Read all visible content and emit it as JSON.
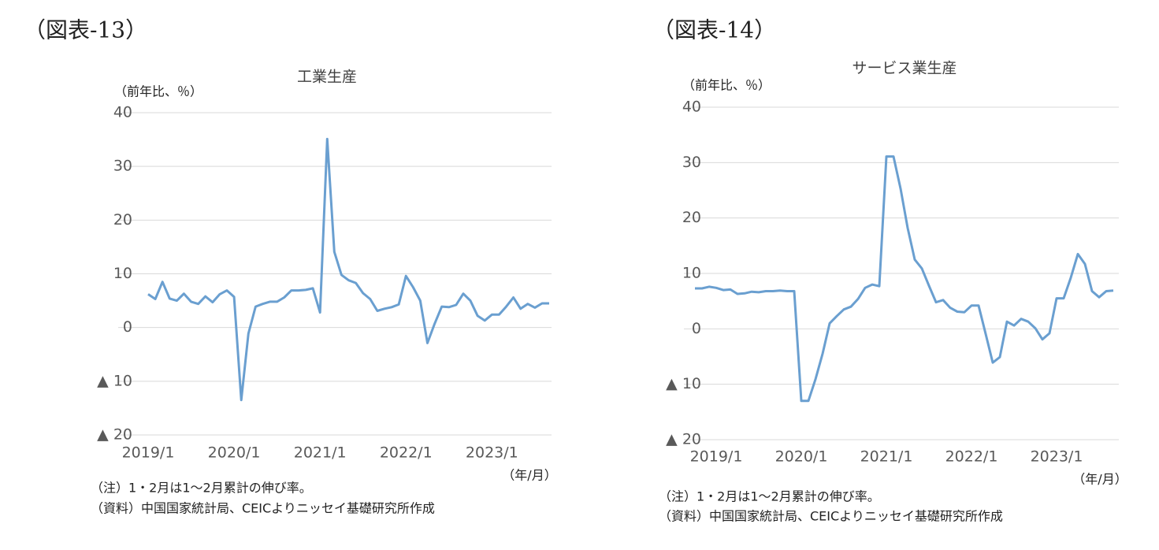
{
  "chart_data": [
    {
      "type": "line",
      "figure_label": "（図表-13）",
      "title": "工業生産",
      "y_unit": "（前年比、％）",
      "x_unit": "（年/月）",
      "notes": [
        "（注）1・2月は1～2月累計の伸び率。",
        "（資料）中国国家統計局、CEICよりニッセイ基礎研究所作成"
      ],
      "categories": [
        "2019/1",
        null,
        null,
        null,
        null,
        null,
        null,
        null,
        null,
        null,
        null,
        null,
        "2020/1",
        null,
        null,
        null,
        null,
        null,
        null,
        null,
        null,
        null,
        null,
        null,
        "2021/1",
        null,
        null,
        null,
        null,
        null,
        null,
        null,
        null,
        null,
        null,
        null,
        "2022/1",
        null,
        null,
        null,
        null,
        null,
        null,
        null,
        null,
        null,
        null,
        null,
        "2023/1",
        null,
        null,
        null,
        null,
        null,
        null,
        null,
        null
      ],
      "series": [
        {
          "name": "工業生産",
          "color": "#6a9fd0",
          "values": [
            6.2,
            5.3,
            8.5,
            5.4,
            5.0,
            6.3,
            4.8,
            4.4,
            5.8,
            4.7,
            6.2,
            6.9,
            5.7,
            -13.5,
            -1.1,
            3.9,
            4.4,
            4.8,
            4.8,
            5.6,
            6.9,
            6.9,
            7.0,
            7.3,
            2.8,
            35.1,
            14.1,
            9.8,
            8.8,
            8.3,
            6.4,
            5.3,
            3.1,
            3.5,
            3.8,
            4.3,
            9.6,
            7.5,
            5.0,
            -2.9,
            0.7,
            3.9,
            3.8,
            4.2,
            6.3,
            5.0,
            2.2,
            1.3,
            2.4,
            2.4,
            3.9,
            5.6,
            3.5,
            4.4,
            3.7,
            4.5,
            4.5
          ]
        }
      ],
      "ylim": [
        -20,
        40
      ],
      "yticks": [
        {
          "value": -20,
          "label": "▲ 20"
        },
        {
          "value": -10,
          "label": "▲ 10"
        },
        0,
        10,
        20,
        30,
        40
      ],
      "grid": true
    },
    {
      "type": "line",
      "figure_label": "（図表-14）",
      "title": "サービス業生産",
      "y_unit": "（前年比、％）",
      "x_unit": "（年/月）",
      "notes": [
        "（注）1・2月は1～2月累計の伸び率。",
        "（資料）中国国家統計局、CEICよりニッセイ基礎研究所作成"
      ],
      "categories": [
        null,
        null,
        null,
        "2019/1",
        null,
        null,
        null,
        null,
        null,
        null,
        null,
        null,
        null,
        null,
        null,
        "2020/1",
        null,
        null,
        null,
        null,
        null,
        null,
        null,
        null,
        null,
        null,
        null,
        "2021/1",
        null,
        null,
        null,
        null,
        null,
        null,
        null,
        null,
        null,
        null,
        null,
        "2022/1",
        null,
        null,
        null,
        null,
        null,
        null,
        null,
        null,
        null,
        null,
        null,
        "2023/1",
        null,
        null,
        null,
        null,
        null,
        null,
        null,
        null
      ],
      "series": [
        {
          "name": "サービス業生産",
          "color": "#6a9fd0",
          "values": [
            7.3,
            7.3,
            7.6,
            7.4,
            7.0,
            7.1,
            6.3,
            6.4,
            6.7,
            6.6,
            6.8,
            6.8,
            6.9,
            6.8,
            6.8,
            -13.0,
            -13.0,
            -9.1,
            -4.5,
            1.0,
            2.3,
            3.5,
            4.0,
            5.4,
            7.4,
            8.0,
            7.7,
            31.1,
            31.1,
            25.3,
            18.2,
            12.5,
            10.9,
            7.8,
            4.8,
            5.2,
            3.8,
            3.1,
            3.0,
            4.2,
            4.2,
            -0.9,
            -6.1,
            -5.1,
            1.3,
            0.6,
            1.8,
            1.3,
            0.1,
            -1.9,
            -0.8,
            5.5,
            5.5,
            9.2,
            13.5,
            11.7,
            6.8,
            5.7,
            6.8,
            6.9
          ]
        }
      ],
      "ylim": [
        -20,
        40
      ],
      "yticks": [
        {
          "value": -20,
          "label": "▲ 20"
        },
        {
          "value": -10,
          "label": "▲ 10"
        },
        0,
        10,
        20,
        30,
        40
      ],
      "grid": true
    }
  ]
}
